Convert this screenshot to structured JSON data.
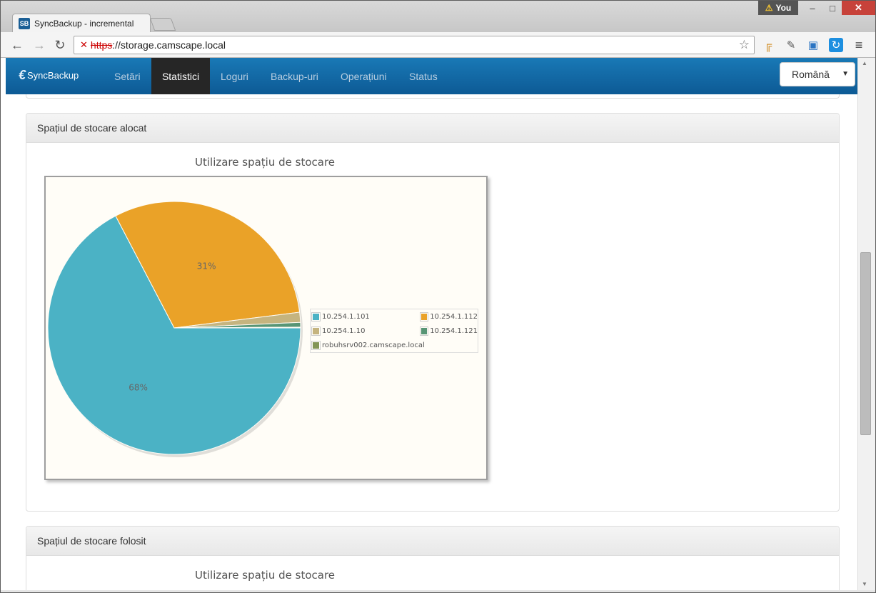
{
  "browser": {
    "tab_title": "SyncBackup - incremental",
    "favicon_text": "SB",
    "profile_name": "You",
    "url_scheme": "https",
    "url_rest": "://storage.camscape.local"
  },
  "navbar": {
    "brand": "SyncBackup",
    "items": [
      {
        "label": "Setări"
      },
      {
        "label": "Statistici"
      },
      {
        "label": "Loguri"
      },
      {
        "label": "Backup-uri"
      },
      {
        "label": "Operațiuni"
      },
      {
        "label": "Status"
      }
    ],
    "active": "Statistici",
    "language": "Română"
  },
  "panels": {
    "allocated_heading": "Spațiul de stocare alocat",
    "used_heading": "Spațiul de stocare folosit"
  },
  "chart_data": [
    {
      "type": "pie",
      "title": "Utilizare spațiu de stocare",
      "categories": [
        "10.254.1.101",
        "10.254.1.112",
        "10.254.1.10",
        "10.254.1.121",
        "robuhsrv002.camscape.local"
      ],
      "values": [
        68,
        31,
        1.3,
        0.6,
        0.1
      ],
      "slice_labels": [
        "68%",
        "31%",
        "",
        "",
        ""
      ],
      "colors": [
        "#4bb2c5",
        "#eaa228",
        "#c5b47f",
        "#579575",
        "#839557"
      ],
      "legend": "right"
    },
    {
      "type": "bar",
      "title": "Utilizare spațiu de stocare"
    }
  ],
  "colors": {
    "navbar": "#1979b6",
    "active_nav": "#262626",
    "plot_background": "#fffdf7"
  }
}
